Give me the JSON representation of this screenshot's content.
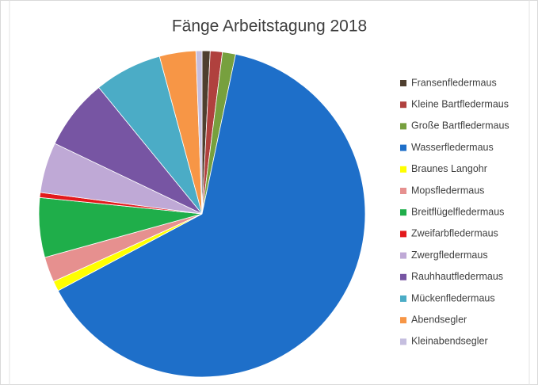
{
  "chart_data": {
    "type": "pie",
    "title": "Fänge Arbeitstagung 2018",
    "categories": [
      "Fransenfledermaus",
      "Kleine Bartfledermaus",
      "Große Bartfledermaus",
      "Wasserfledermaus",
      "Braunes Langohr",
      "Mopsfledermaus",
      "Breitflügelfledermaus",
      "Zweifarbfledermaus",
      "Zwergfledermaus",
      "Rauhhautfledermaus",
      "Mückenfledermaus",
      "Abendsegler",
      "Kleinabendsegler"
    ],
    "values": [
      0.8,
      1.2,
      1.3,
      63.9,
      1,
      2.5,
      5.9,
      0.5,
      5,
      7,
      6.7,
      3.6,
      0.6
    ],
    "colors": [
      "#4f3f2f",
      "#b0413e",
      "#77a03e",
      "#1e6fc9",
      "#ffff00",
      "#e6908f",
      "#1fae4a",
      "#e31a1c",
      "#bfa9d6",
      "#7755a3",
      "#4bacc6",
      "#f79646",
      "#c5bedf"
    ],
    "legend": "right"
  }
}
